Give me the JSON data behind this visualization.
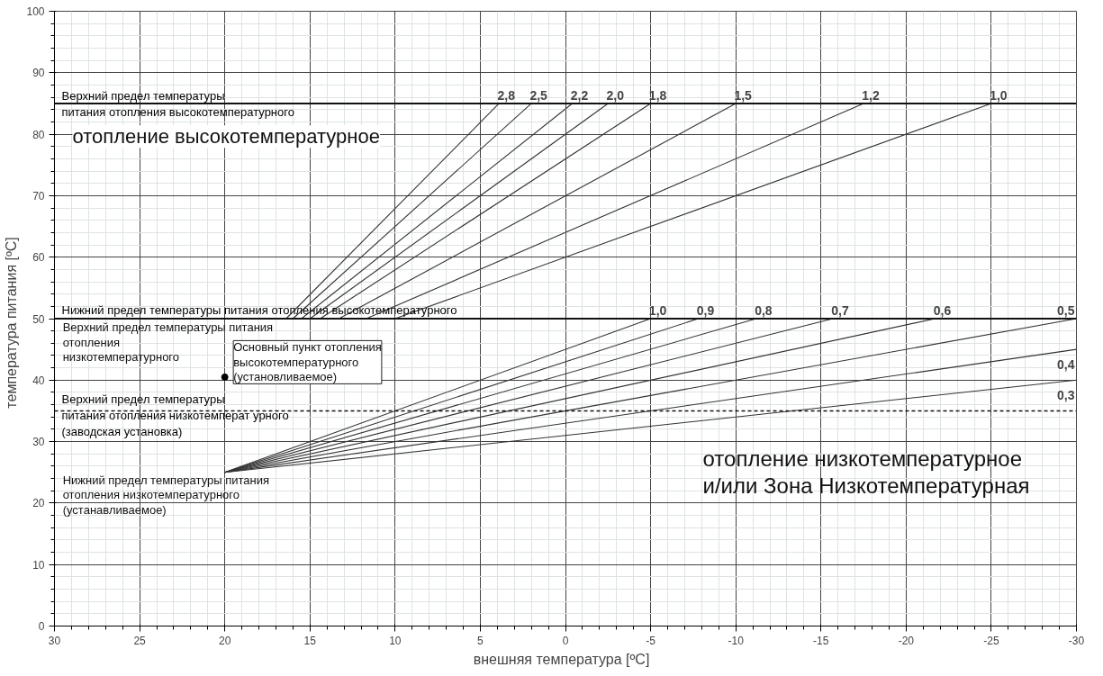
{
  "chart_data": {
    "type": "line",
    "xlabel": "внешняя температура   [ºC]",
    "ylabel": "температура питания   [ºC]",
    "xlim": [
      30,
      -30
    ],
    "xticks": [
      30,
      25,
      20,
      15,
      10,
      5,
      0,
      -5,
      -10,
      -15,
      -20,
      -25,
      -30
    ],
    "ylim": [
      0,
      100
    ],
    "yticks": [
      0,
      10,
      20,
      30,
      40,
      50,
      60,
      70,
      80,
      90,
      100
    ],
    "grid": true,
    "marker": "none",
    "line_style": "solid",
    "series": [
      {
        "name": "2,8",
        "color": "#333333",
        "x": [
          16.4,
          3.9
        ],
        "values": [
          50,
          85
        ]
      },
      {
        "name": "2,5",
        "color": "#333333",
        "x": [
          16,
          2
        ],
        "values": [
          50,
          85
        ]
      },
      {
        "name": "2,2",
        "color": "#333333",
        "x": [
          15.5,
          -0.4
        ],
        "values": [
          50,
          85
        ]
      },
      {
        "name": "2,0",
        "color": "#333333",
        "x": [
          15,
          -2.5
        ],
        "values": [
          50,
          85
        ]
      },
      {
        "name": "1,8",
        "color": "#333333",
        "x": [
          14.4,
          -5
        ],
        "values": [
          50,
          85
        ]
      },
      {
        "name": "1,5",
        "color": "#333333",
        "x": [
          13.3,
          -10
        ],
        "values": [
          50,
          85
        ]
      },
      {
        "name": "1,2",
        "color": "#333333",
        "x": [
          11.7,
          -17.5
        ],
        "values": [
          50,
          85
        ]
      },
      {
        "name": "1,0",
        "color": "#333333",
        "x": [
          10,
          -25
        ],
        "values": [
          50,
          85
        ]
      },
      {
        "name": "1,0",
        "color": "#333333",
        "x": [
          20,
          -5
        ],
        "values": [
          25,
          50
        ]
      },
      {
        "name": "0,9",
        "color": "#333333",
        "x": [
          20,
          -7.8
        ],
        "values": [
          25,
          50
        ]
      },
      {
        "name": "0,8",
        "color": "#333333",
        "x": [
          20,
          -11.2
        ],
        "values": [
          25,
          50
        ]
      },
      {
        "name": "0,7",
        "color": "#333333",
        "x": [
          20,
          -15.7
        ],
        "values": [
          25,
          50
        ]
      },
      {
        "name": "0,6",
        "color": "#333333",
        "x": [
          20,
          -21.7
        ],
        "values": [
          25,
          50
        ]
      },
      {
        "name": "0,5",
        "color": "#333333",
        "x": [
          20,
          -30
        ],
        "values": [
          25,
          50
        ]
      },
      {
        "name": "0,4",
        "color": "#333333",
        "x": [
          20,
          -30
        ],
        "values": [
          25,
          45
        ]
      },
      {
        "name": "0,3",
        "color": "#333333",
        "x": [
          20,
          -30
        ],
        "values": [
          25,
          40
        ]
      },
      {
        "type": "scatter",
        "marker": "circle",
        "color": "#000000",
        "x": [
          20
        ],
        "values": [
          40.5
        ]
      }
    ],
    "ref_lines": [
      {
        "axis": "y",
        "value": 85,
        "label": "Верхний предел температуры\nпитания отопления высокотемпературного",
        "color": "#111111",
        "line_style": "solid"
      },
      {
        "axis": "y",
        "value": 50,
        "label": "Нижний предел температуры питания отопления высокотемпературного",
        "color": "#111111",
        "line_style": "solid"
      },
      {
        "axis": "y",
        "value": 35,
        "label": "Верхний предел температуры\nпитания отопления низкотемперат урного\n(заводская установка)",
        "color": "#111111",
        "line_style": "dashed"
      }
    ],
    "annotations": [
      "отопление высокотемпературное",
      "отопление низкотемпературное\nи/или Зона Низкотемпературная",
      "Основный пункт отопления\n высокотемпературного\n(установливаемое)",
      {
        "text": "Верхний предел температуры питания\nотопления\n низкотемпературного",
        "x": 20,
        "y": 40
      },
      {
        "text": "Нижний предел температуры питания\n отопления низкотемпературного\n (устанавливаемое)",
        "x": 20,
        "y": 25
      }
    ]
  }
}
